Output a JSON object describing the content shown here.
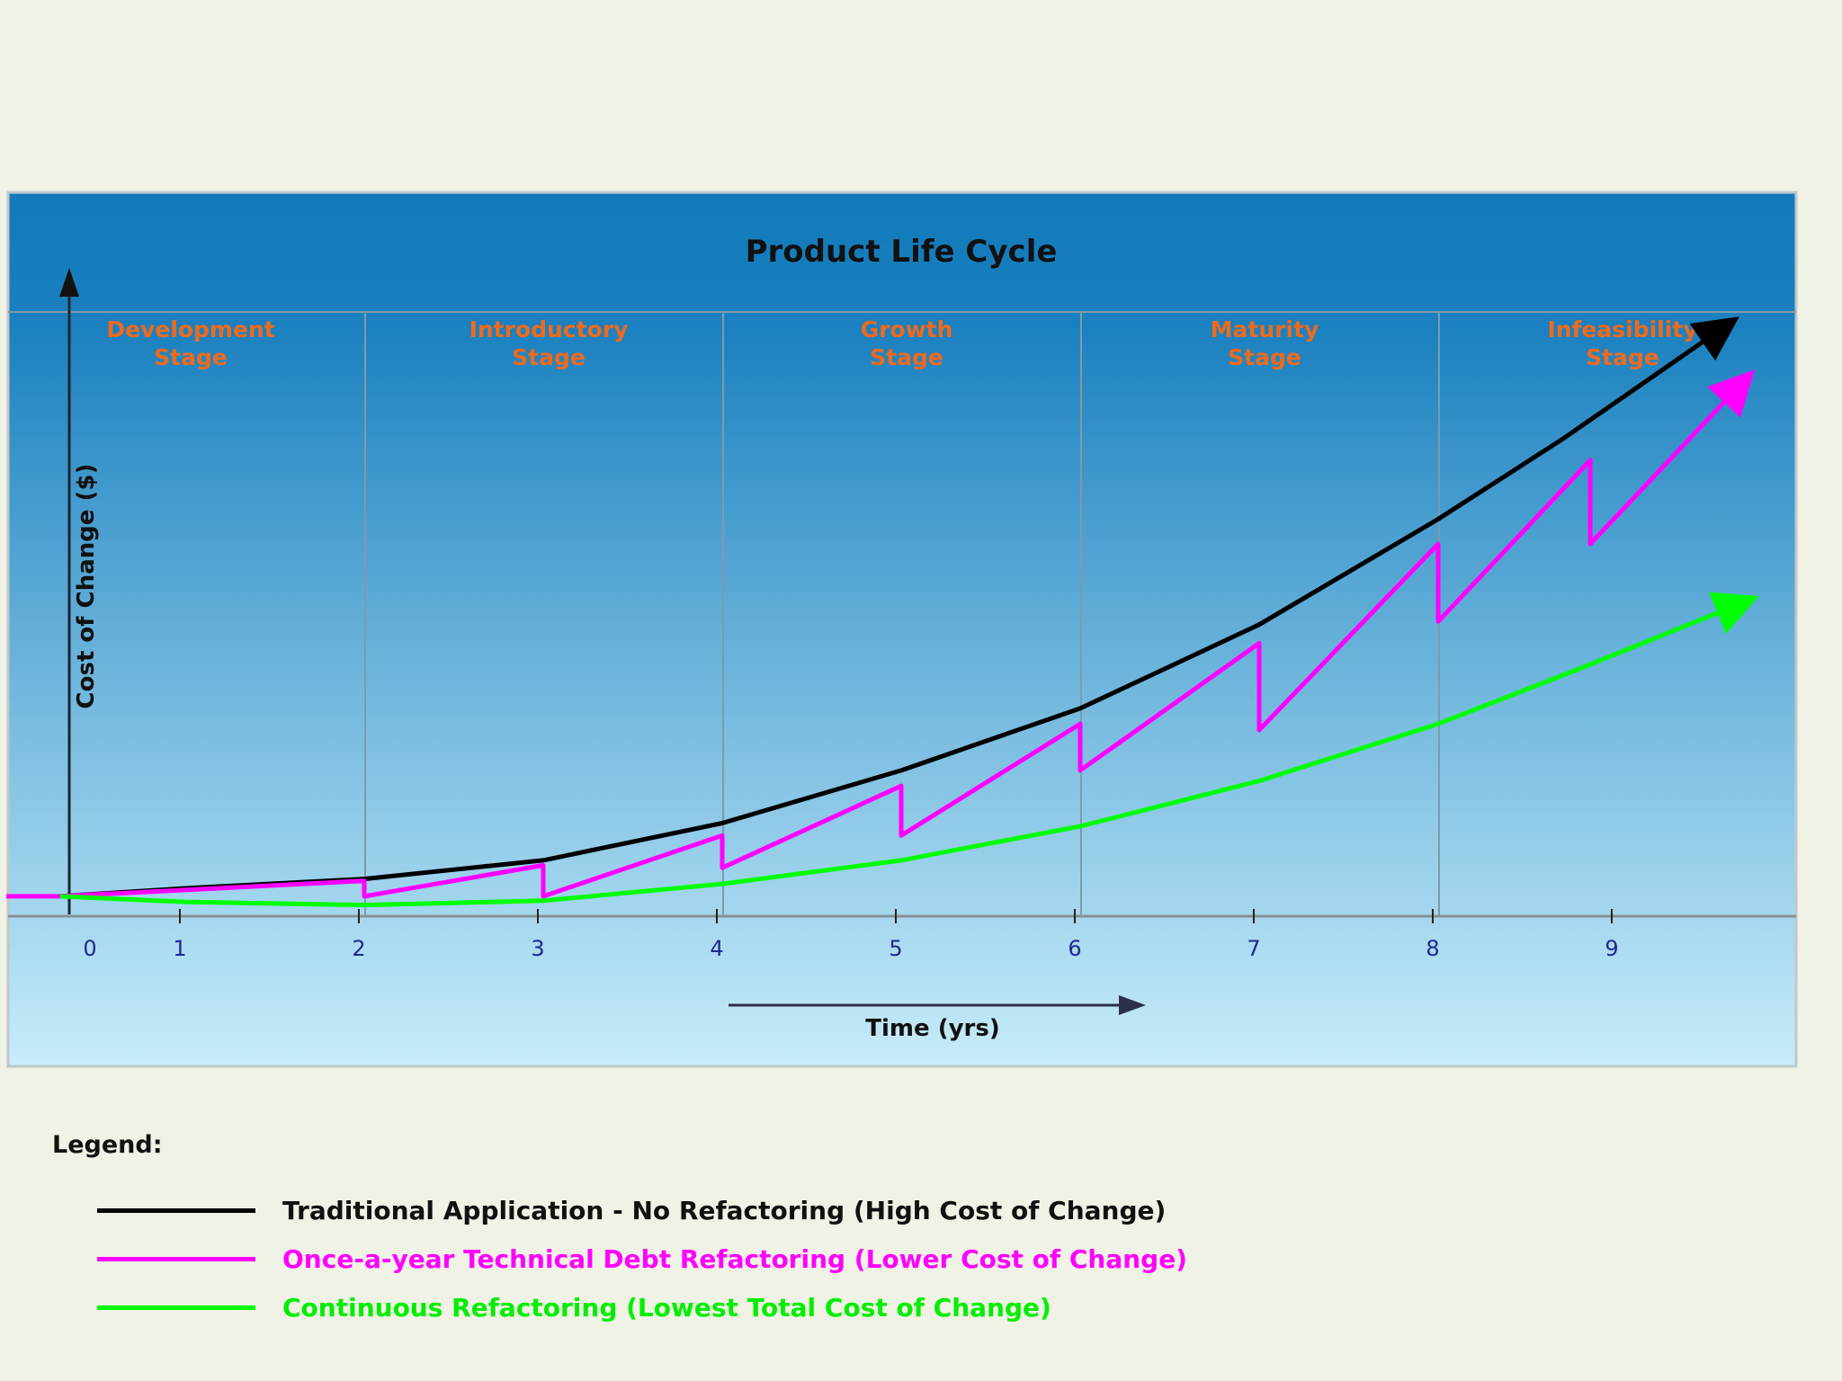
{
  "chart_data": {
    "type": "line",
    "title": "Product Life Cycle",
    "xlabel": "Time (yrs)",
    "ylabel": "Cost of Change ($)",
    "xlim": [
      0,
      10
    ],
    "ylim": [
      0,
      100
    ],
    "x_ticks": [
      0,
      1,
      2,
      3,
      4,
      5,
      6,
      7,
      8,
      9
    ],
    "stages": [
      {
        "line1": "Development",
        "line2": "Stage"
      },
      {
        "line1": "Introductory",
        "line2": "Stage"
      },
      {
        "line1": "Growth",
        "line2": "Stage"
      },
      {
        "line1": "Maturity",
        "line2": "Stage"
      },
      {
        "line1": "Infeasibility",
        "line2": "Stage"
      }
    ],
    "stage_boundaries": [
      2,
      4,
      6,
      8
    ],
    "series": [
      {
        "name": "Traditional Application - No Refactoring (High Cost of Change)",
        "color": "#000000",
        "points": [
          [
            0.3,
            3.2
          ],
          [
            1,
            4.5
          ],
          [
            2,
            6
          ],
          [
            3,
            9
          ],
          [
            4,
            15
          ],
          [
            5,
            23.5
          ],
          [
            6,
            33.5
          ],
          [
            7,
            47
          ],
          [
            8,
            64
          ],
          [
            8.7,
            77
          ],
          [
            9.6,
            95
          ]
        ]
      },
      {
        "name": "Once-a-year Technical Debt Refactoring (Lower Cost of Change)",
        "color": "#ff00ff",
        "points": [
          [
            0,
            3.2
          ],
          [
            0.3,
            3.2
          ],
          [
            2,
            5.7
          ],
          [
            2,
            3.2
          ],
          [
            3,
            8.2
          ],
          [
            3,
            3.2
          ],
          [
            4,
            13
          ],
          [
            4,
            7.8
          ],
          [
            5,
            21
          ],
          [
            5,
            13
          ],
          [
            6,
            31
          ],
          [
            6,
            23.5
          ],
          [
            7,
            44
          ],
          [
            7,
            30
          ],
          [
            8,
            60
          ],
          [
            8,
            47.5
          ],
          [
            8.85,
            73.5
          ],
          [
            8.85,
            60
          ],
          [
            9.7,
            86
          ]
        ]
      },
      {
        "name": "Continuous Refactoring (Lowest Total Cost of Change)",
        "color": "#00ff00",
        "points": [
          [
            0.3,
            3.2
          ],
          [
            1,
            2.3
          ],
          [
            2,
            1.8
          ],
          [
            3,
            2.5
          ],
          [
            4,
            5.2
          ],
          [
            5,
            9
          ],
          [
            6,
            14.5
          ],
          [
            7,
            21.8
          ],
          [
            8,
            31
          ],
          [
            8.8,
            40
          ],
          [
            9.7,
            50.5
          ]
        ]
      }
    ]
  },
  "legend": {
    "title": "Legend:",
    "items": [
      {
        "label": "Traditional Application - No Refactoring (High Cost of Change)",
        "color": "#000000",
        "text_color": "#111111"
      },
      {
        "label": "Once-a-year Technical Debt Refactoring (Lower Cost of Change)",
        "color": "#ff00ff",
        "text_color": "#ff00ff"
      },
      {
        "label": "Continuous Refactoring (Lowest Total Cost of Change)",
        "color": "#00ff00",
        "text_color": "#00ee00"
      }
    ]
  },
  "colors": {
    "panel_top": "#127abb",
    "panel_mid": "#6db5dc",
    "panel_bottom": "#c8ecfa",
    "stage_label": "#ee6a1d",
    "tick_label": "#1d2a8c"
  }
}
